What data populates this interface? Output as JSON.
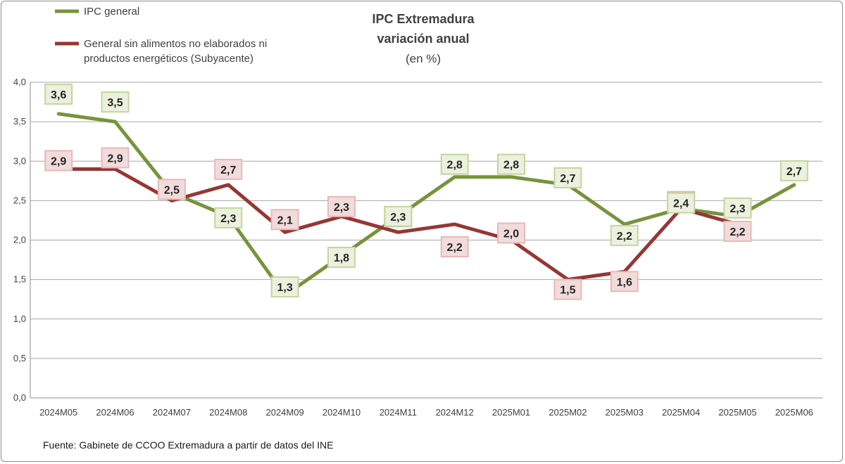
{
  "chart_data": {
    "type": "line",
    "title": "IPC Extremadura",
    "subtitle": "variación anual",
    "unit": "(en %)",
    "categories": [
      "2024M05",
      "2024M06",
      "2024M07",
      "2024M08",
      "2024M09",
      "2024M10",
      "2024M11",
      "2024M12",
      "2025M01",
      "2025M02",
      "2025M03",
      "2025M04",
      "2025M05",
      "2025M06"
    ],
    "ylim": [
      0,
      4
    ],
    "yticks": [
      "0,0",
      "0,5",
      "1,0",
      "1,5",
      "2,0",
      "2,5",
      "3,0",
      "3,5",
      "4,0"
    ],
    "ytick_values": [
      0,
      0.5,
      1,
      1.5,
      2,
      2.5,
      3,
      3.5,
      4
    ],
    "grid": true,
    "legend_position": "top-left",
    "series": [
      {
        "name": "IPC general",
        "color": "#77933c",
        "label_bg": "#ebf1de",
        "label_border": "#c3d69b",
        "values": [
          3.6,
          3.5,
          2.6,
          2.3,
          1.3,
          1.8,
          2.3,
          2.8,
          2.8,
          2.7,
          2.2,
          2.4,
          2.3,
          2.7
        ],
        "labels": [
          "3,6",
          "3,5",
          "",
          "2,3",
          "1,3",
          "1,8",
          "2,3",
          "2,8",
          "2,8",
          "2,7",
          "2,2",
          "2,4",
          "2,3",
          "2,7"
        ]
      },
      {
        "name": "General sin alimentos no elaborados ni productos energéticos (Subyacente)",
        "legend_lines": [
          "General sin alimentos no elaborados ni",
          "productos energéticos (Subyacente)"
        ],
        "color": "#953735",
        "label_bg": "#f2dcdb",
        "label_border": "#e6b9b8",
        "values": [
          2.9,
          2.9,
          2.5,
          2.7,
          2.1,
          2.3,
          2.1,
          2.2,
          2.0,
          1.5,
          1.6,
          2.4,
          2.2,
          null
        ],
        "labels": [
          "2,9",
          "2,9",
          "2,5",
          "2,7",
          "2,1",
          "2,3",
          "2,1",
          "2,2",
          "2,0",
          "1,5",
          "1,6",
          "2,4",
          "2,2",
          ""
        ]
      }
    ],
    "source": "Fuente: Gabinete de CCOO Extremadura a partir de datos del INE"
  }
}
